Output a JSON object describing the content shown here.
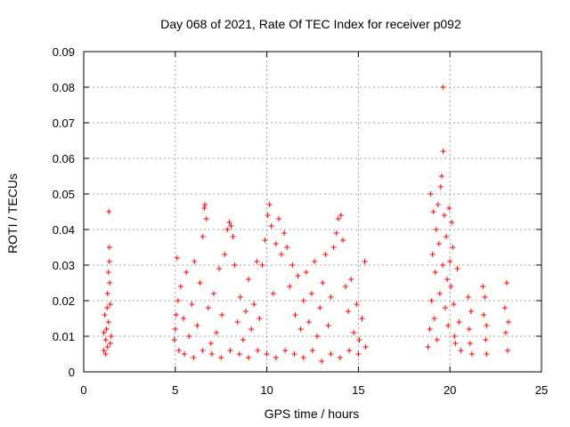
{
  "chart_data": {
    "type": "scatter",
    "title": "Day 068 of 2021, Rate Of TEC Index for receiver p092",
    "xlabel": "GPS time / hours",
    "ylabel": "ROTI / TECUs",
    "xlim": [
      0,
      25
    ],
    "ylim": [
      0,
      0.09
    ],
    "x_ticks": [
      0,
      5,
      10,
      15,
      20,
      25
    ],
    "x_tick_labels": [
      "0",
      "5",
      "10",
      "15",
      "20",
      "25"
    ],
    "y_ticks": [
      0,
      0.01,
      0.02,
      0.03,
      0.04,
      0.05,
      0.06,
      0.07,
      0.08,
      0.09
    ],
    "y_tick_labels": [
      "0",
      "0.01",
      "0.02",
      "0.03",
      "0.04",
      "0.05",
      "0.06",
      "0.07",
      "0.08",
      "0.09"
    ],
    "grid": true,
    "marker": "plus",
    "color": "#ff0000",
    "points": [
      [
        1.1,
        0.006
      ],
      [
        1.1,
        0.011
      ],
      [
        1.15,
        0.016
      ],
      [
        1.2,
        0.009
      ],
      [
        1.25,
        0.012
      ],
      [
        1.3,
        0.007
      ],
      [
        1.3,
        0.022
      ],
      [
        1.35,
        0.028
      ],
      [
        1.38,
        0.045
      ],
      [
        1.4,
        0.035
      ],
      [
        1.4,
        0.031
      ],
      [
        1.45,
        0.019
      ],
      [
        1.45,
        0.008
      ],
      [
        1.5,
        0.01
      ],
      [
        1.2,
        0.005
      ],
      [
        1.35,
        0.014
      ],
      [
        1.42,
        0.025
      ],
      [
        1.28,
        0.018
      ],
      [
        4.95,
        0.009
      ],
      [
        5.0,
        0.012
      ],
      [
        5.05,
        0.016
      ],
      [
        5.1,
        0.032
      ],
      [
        5.15,
        0.02
      ],
      [
        5.2,
        0.006
      ],
      [
        5.3,
        0.024
      ],
      [
        5.45,
        0.015
      ],
      [
        5.6,
        0.028
      ],
      [
        5.75,
        0.01
      ],
      [
        5.9,
        0.019
      ],
      [
        6.05,
        0.031
      ],
      [
        6.2,
        0.013
      ],
      [
        6.35,
        0.025
      ],
      [
        6.5,
        0.038
      ],
      [
        6.58,
        0.046
      ],
      [
        6.62,
        0.047
      ],
      [
        6.7,
        0.043
      ],
      [
        6.8,
        0.018
      ],
      [
        6.95,
        0.008
      ],
      [
        7.1,
        0.022
      ],
      [
        7.25,
        0.011
      ],
      [
        7.4,
        0.029
      ],
      [
        7.55,
        0.016
      ],
      [
        7.7,
        0.033
      ],
      [
        7.85,
        0.04
      ],
      [
        7.95,
        0.042
      ],
      [
        8.05,
        0.041
      ],
      [
        8.15,
        0.038
      ],
      [
        8.25,
        0.03
      ],
      [
        8.4,
        0.014
      ],
      [
        8.55,
        0.021
      ],
      [
        8.7,
        0.009
      ],
      [
        8.85,
        0.017
      ],
      [
        9.0,
        0.026
      ],
      [
        9.15,
        0.012
      ],
      [
        9.3,
        0.019
      ],
      [
        9.45,
        0.031
      ],
      [
        9.6,
        0.015
      ],
      [
        9.75,
        0.03
      ],
      [
        9.9,
        0.037
      ],
      [
        10.05,
        0.044
      ],
      [
        10.15,
        0.047
      ],
      [
        10.25,
        0.041
      ],
      [
        10.35,
        0.022
      ],
      [
        10.5,
        0.036
      ],
      [
        10.65,
        0.043
      ],
      [
        10.8,
        0.033
      ],
      [
        10.95,
        0.039
      ],
      [
        11.1,
        0.035
      ],
      [
        11.25,
        0.024
      ],
      [
        11.4,
        0.03
      ],
      [
        11.55,
        0.016
      ],
      [
        11.7,
        0.027
      ],
      [
        11.85,
        0.012
      ],
      [
        12.0,
        0.02
      ],
      [
        12.15,
        0.028
      ],
      [
        12.3,
        0.014
      ],
      [
        12.45,
        0.022
      ],
      [
        12.6,
        0.031
      ],
      [
        12.75,
        0.01
      ],
      [
        12.9,
        0.018
      ],
      [
        13.05,
        0.025
      ],
      [
        13.2,
        0.033
      ],
      [
        13.35,
        0.013
      ],
      [
        13.5,
        0.021
      ],
      [
        13.65,
        0.035
      ],
      [
        13.8,
        0.039
      ],
      [
        13.9,
        0.043
      ],
      [
        14.05,
        0.044
      ],
      [
        14.15,
        0.037
      ],
      [
        14.3,
        0.024
      ],
      [
        14.45,
        0.017
      ],
      [
        14.6,
        0.026
      ],
      [
        14.75,
        0.011
      ],
      [
        14.9,
        0.019
      ],
      [
        15.05,
        0.009
      ],
      [
        15.2,
        0.015
      ],
      [
        15.35,
        0.031
      ],
      [
        15.4,
        0.007
      ],
      [
        5.5,
        0.005
      ],
      [
        6.0,
        0.004
      ],
      [
        6.5,
        0.006
      ],
      [
        7.0,
        0.005
      ],
      [
        7.5,
        0.004
      ],
      [
        8.0,
        0.006
      ],
      [
        8.5,
        0.005
      ],
      [
        9.0,
        0.004
      ],
      [
        9.5,
        0.006
      ],
      [
        10.0,
        0.005
      ],
      [
        10.5,
        0.004
      ],
      [
        11.0,
        0.006
      ],
      [
        11.5,
        0.005
      ],
      [
        12.0,
        0.004
      ],
      [
        12.5,
        0.006
      ],
      [
        13.0,
        0.003
      ],
      [
        13.5,
        0.005
      ],
      [
        14.0,
        0.004
      ],
      [
        14.5,
        0.006
      ],
      [
        15.0,
        0.005
      ],
      [
        18.8,
        0.007
      ],
      [
        18.9,
        0.012
      ],
      [
        18.95,
        0.05
      ],
      [
        19.0,
        0.02
      ],
      [
        19.05,
        0.033
      ],
      [
        19.1,
        0.045
      ],
      [
        19.15,
        0.015
      ],
      [
        19.2,
        0.028
      ],
      [
        19.25,
        0.04
      ],
      [
        19.3,
        0.009
      ],
      [
        19.35,
        0.047
      ],
      [
        19.4,
        0.036
      ],
      [
        19.45,
        0.022
      ],
      [
        19.5,
        0.052
      ],
      [
        19.55,
        0.055
      ],
      [
        19.6,
        0.03
      ],
      [
        19.63,
        0.062
      ],
      [
        19.62,
        0.08
      ],
      [
        19.7,
        0.044
      ],
      [
        19.75,
        0.018
      ],
      [
        19.8,
        0.038
      ],
      [
        19.85,
        0.026
      ],
      [
        19.9,
        0.013
      ],
      [
        19.95,
        0.046
      ],
      [
        20.0,
        0.031
      ],
      [
        20.05,
        0.024
      ],
      [
        20.1,
        0.042
      ],
      [
        20.15,
        0.035
      ],
      [
        20.2,
        0.019
      ],
      [
        20.25,
        0.01
      ],
      [
        20.3,
        0.008
      ],
      [
        20.4,
        0.029
      ],
      [
        20.5,
        0.014
      ],
      [
        20.6,
        0.006
      ],
      [
        21.0,
        0.021
      ],
      [
        21.05,
        0.012
      ],
      [
        21.1,
        0.008
      ],
      [
        21.15,
        0.017
      ],
      [
        21.2,
        0.005
      ],
      [
        21.8,
        0.024
      ],
      [
        21.85,
        0.016
      ],
      [
        21.9,
        0.021
      ],
      [
        21.95,
        0.009
      ],
      [
        22.0,
        0.005
      ],
      [
        22.0,
        0.013
      ],
      [
        23.0,
        0.018
      ],
      [
        23.05,
        0.011
      ],
      [
        23.1,
        0.025
      ],
      [
        23.15,
        0.006
      ],
      [
        23.2,
        0.014
      ]
    ]
  }
}
